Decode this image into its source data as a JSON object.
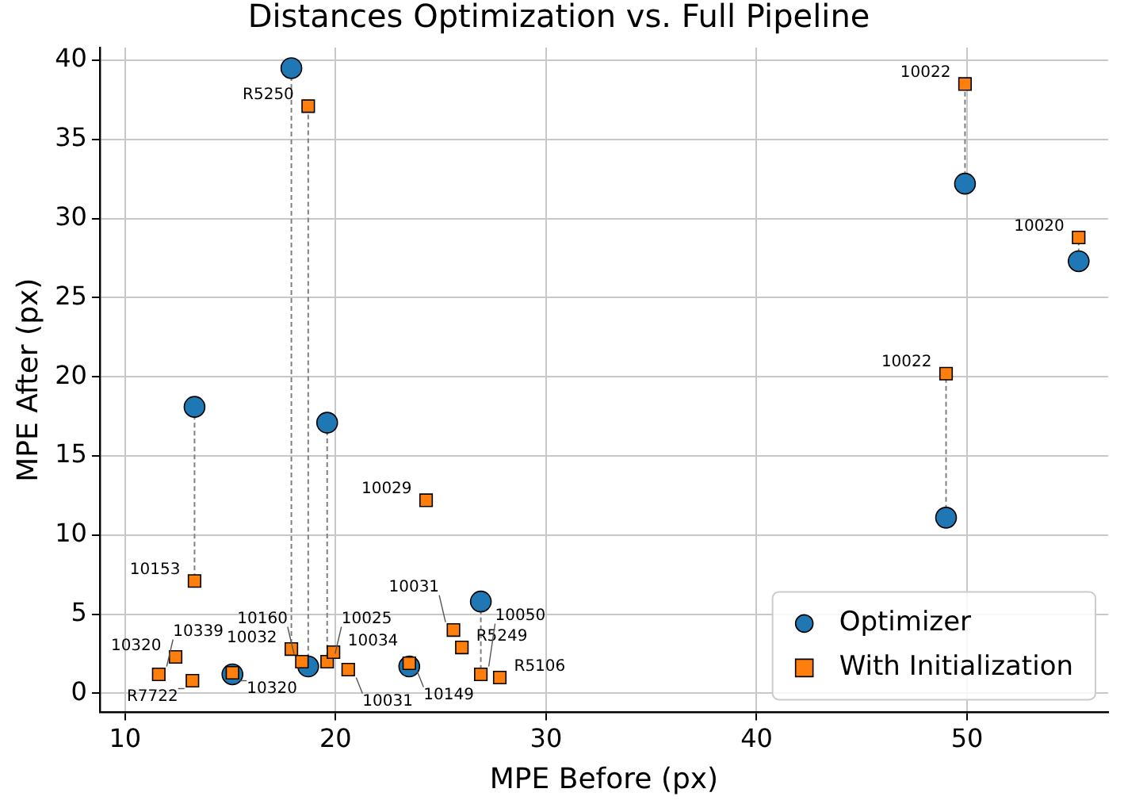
{
  "chart_data": {
    "type": "scatter",
    "title": "Distances Optimization vs. Full Pipeline",
    "xlabel": "MPE Before (px)",
    "ylabel": "MPE After (px)",
    "x": [
      11.6,
      12.4,
      13.3,
      13.2,
      15.1,
      17.9,
      18.4,
      18.7,
      19.6,
      19.9,
      20.6,
      23.5,
      24.3,
      25.6,
      26.0,
      26.9,
      27.8,
      49.9,
      55.3,
      49.0
    ],
    "series": [
      {
        "type": "line",
        "color": "#808080",
        "marker": "none",
        "line_style": "dashed",
        "x": [
          13.3,
          13.3
        ],
        "values": [
          18.1,
          7.1
        ]
      },
      {
        "type": "line",
        "color": "#808080",
        "marker": "none",
        "line_style": "dashed",
        "x": [
          17.9,
          17.9
        ],
        "values": [
          39.5,
          2.8
        ]
      },
      {
        "type": "line",
        "color": "#808080",
        "marker": "none",
        "line_style": "dashed",
        "x": [
          18.7,
          18.7
        ],
        "values": [
          1.7,
          37.1
        ]
      },
      {
        "type": "line",
        "color": "#808080",
        "marker": "none",
        "line_style": "dashed",
        "x": [
          19.6,
          19.6
        ],
        "values": [
          17.1,
          2.0
        ]
      },
      {
        "type": "line",
        "color": "#808080",
        "marker": "none",
        "line_style": "dashed",
        "x": [
          26.9,
          26.9
        ],
        "values": [
          5.8,
          1.2
        ]
      },
      {
        "type": "line",
        "color": "#808080",
        "marker": "none",
        "line_style": "dashed",
        "x": [
          49.9,
          49.9
        ],
        "values": [
          32.2,
          38.5
        ]
      },
      {
        "type": "line",
        "color": "#808080",
        "marker": "none",
        "line_style": "dashed",
        "x": [
          55.3,
          55.3
        ],
        "values": [
          27.3,
          28.8
        ]
      },
      {
        "type": "line",
        "color": "#808080",
        "marker": "none",
        "line_style": "dashed",
        "x": [
          49.0,
          49.0
        ],
        "values": [
          11.1,
          20.2
        ]
      },
      {
        "name": "Optimizer",
        "color": "#1f77b4",
        "marker": "circle",
        "values": [
          null,
          null,
          18.1,
          null,
          1.2,
          39.5,
          null,
          1.7,
          17.1,
          null,
          null,
          1.7,
          null,
          null,
          null,
          5.8,
          null,
          32.2,
          27.3,
          11.1
        ]
      },
      {
        "name": "With Initialization",
        "color": "#ff7f0e",
        "marker": "square",
        "values": [
          1.2,
          2.3,
          7.1,
          0.8,
          1.3,
          2.8,
          2.0,
          37.1,
          2.0,
          2.6,
          1.5,
          1.9,
          12.2,
          4.0,
          2.9,
          1.2,
          1.0,
          38.5,
          28.8,
          20.2
        ]
      }
    ],
    "annotations": [
      {
        "text": "10339",
        "x": 11.6,
        "y": 1.2
      },
      {
        "text": "10320",
        "x": 12.4,
        "y": 2.3
      },
      {
        "text": "10153",
        "x": 13.3,
        "y": 7.1
      },
      {
        "text": "R7722",
        "x": 13.2,
        "y": 0.8
      },
      {
        "text": "10320",
        "x": 15.1,
        "y": 1.3
      },
      {
        "text": "10032",
        "x": 17.9,
        "y": 2.8
      },
      {
        "text": "10160",
        "x": 18.4,
        "y": 2.0
      },
      {
        "text": "R5250",
        "x": 18.7,
        "y": 37.1
      },
      {
        "text": "10025",
        "x": 19.6,
        "y": 2.0
      },
      {
        "text": "10034",
        "x": 19.9,
        "y": 2.6
      },
      {
        "text": "10031",
        "x": 20.6,
        "y": 1.5
      },
      {
        "text": "10149",
        "x": 23.5,
        "y": 1.9
      },
      {
        "text": "10029",
        "x": 24.3,
        "y": 12.2
      },
      {
        "text": "10031",
        "x": 25.6,
        "y": 4.0
      },
      {
        "text": "R5249",
        "x": 26.0,
        "y": 2.9
      },
      {
        "text": "10050",
        "x": 26.9,
        "y": 1.2
      },
      {
        "text": "R5106",
        "x": 27.8,
        "y": 1.0
      },
      {
        "text": "10022",
        "x": 49.9,
        "y": 38.5
      },
      {
        "text": "10020",
        "x": 55.3,
        "y": 28.8
      },
      {
        "text": "10022",
        "x": 49.0,
        "y": 20.2
      }
    ],
    "xlim": [
      8.8,
      56.7
    ],
    "xticks": [
      10,
      20,
      30,
      40,
      50
    ],
    "ylim": [
      -1.2,
      40.8
    ],
    "yticks": [
      0,
      5,
      10,
      15,
      20,
      25,
      30,
      35,
      40
    ],
    "grid": true,
    "legend": "bottom right"
  }
}
